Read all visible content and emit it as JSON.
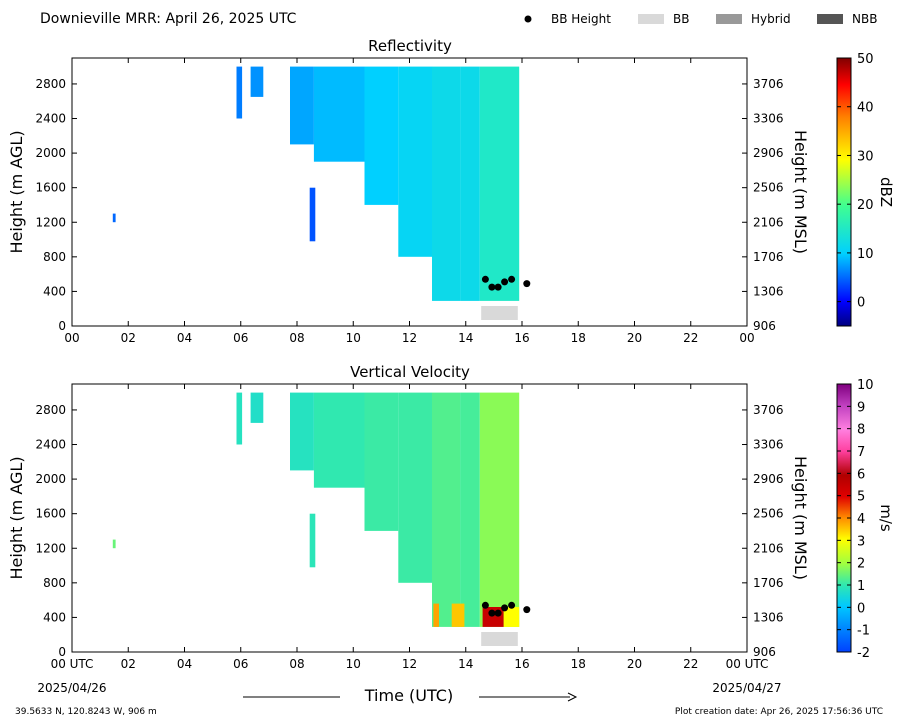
{
  "header": {
    "title": "Downieville MRR:  April 26, 2025 UTC",
    "legend": [
      {
        "label": "BB Height",
        "kind": "marker",
        "color": "#000000"
      },
      {
        "label": "BB",
        "kind": "patch",
        "color": "#d9d9d9"
      },
      {
        "label": "Hybrid",
        "kind": "patch",
        "color": "#999999"
      },
      {
        "label": "NBB",
        "kind": "patch",
        "color": "#555555"
      }
    ]
  },
  "footer": {
    "location": "39.5633 N, 120.8243 W, 906 m",
    "creation": "Plot creation date: Apr 26, 2025 17:56:36 UTC",
    "start_date": "2025/04/26",
    "end_date": "2025/04/27",
    "xaxis_title": "Time (UTC)"
  },
  "chart_data": [
    {
      "type": "heatmap",
      "title": "Reflectivity",
      "ylabel": "Height (m AGL)",
      "ylabel_right": "Height (m MSL)",
      "xlim": [
        0,
        24
      ],
      "ylim": [
        0,
        3100
      ],
      "x_ticks": [
        "00",
        "02",
        "04",
        "06",
        "08",
        "10",
        "12",
        "14",
        "16",
        "18",
        "20",
        "22",
        "00"
      ],
      "y_ticks": [
        "0",
        "400",
        "800",
        "1200",
        "1600",
        "2000",
        "2400",
        "2800"
      ],
      "y_ticks_right": [
        "906",
        "1306",
        "1706",
        "2106",
        "2506",
        "2906",
        "3306",
        "3706"
      ],
      "colorbar": {
        "label": "dBZ",
        "min": -5,
        "max": 50,
        "ticks": [
          "0",
          "10",
          "20",
          "30",
          "40",
          "50"
        ]
      },
      "bb_height": [
        {
          "time": 14.7,
          "height": 540
        },
        {
          "time": 14.93,
          "height": 450
        },
        {
          "time": 15.15,
          "height": 450
        },
        {
          "time": 15.38,
          "height": 510
        },
        {
          "time": 15.63,
          "height": 540
        },
        {
          "time": 16.17,
          "height": 490
        }
      ],
      "bb_bar": {
        "start": 14.55,
        "end": 15.85,
        "kind": "BB"
      },
      "echo_regions": [
        {
          "t0": 1.45,
          "t1": 1.55,
          "bottom": 1200,
          "top": 1300,
          "value": 5
        },
        {
          "t0": 5.85,
          "t1": 6.05,
          "bottom": 2400,
          "top": 3000,
          "value": 6
        },
        {
          "t0": 6.35,
          "t1": 6.8,
          "bottom": 2650,
          "top": 3000,
          "value": 7
        },
        {
          "t0": 7.75,
          "t1": 8.6,
          "bottom": 2100,
          "top": 3000,
          "value": 8
        },
        {
          "t0": 8.45,
          "t1": 8.65,
          "bottom": 980,
          "top": 1600,
          "value": 4
        },
        {
          "t0": 8.6,
          "t1": 10.4,
          "bottom": 1900,
          "top": 3000,
          "value": 9
        },
        {
          "t0": 10.4,
          "t1": 11.6,
          "bottom": 1400,
          "top": 3000,
          "value": 10
        },
        {
          "t0": 11.6,
          "t1": 12.8,
          "bottom": 800,
          "top": 3000,
          "value": 11
        },
        {
          "t0": 12.8,
          "t1": 13.8,
          "bottom": 290,
          "top": 3000,
          "value": 12
        },
        {
          "t0": 13.8,
          "t1": 14.5,
          "bottom": 290,
          "top": 3000,
          "value": 12
        },
        {
          "t0": 14.5,
          "t1": 15.9,
          "bottom": 290,
          "top": 3000,
          "value": 15
        }
      ]
    },
    {
      "type": "heatmap",
      "title": "Vertical Velocity",
      "ylabel": "Height (m AGL)",
      "ylabel_right": "Height (m MSL)",
      "xlim": [
        0,
        24
      ],
      "ylim": [
        0,
        3100
      ],
      "x_ticks": [
        "00 UTC",
        "02",
        "04",
        "06",
        "08",
        "10",
        "12",
        "14",
        "16",
        "18",
        "20",
        "22",
        "00 UTC"
      ],
      "y_ticks": [
        "0",
        "400",
        "800",
        "1200",
        "1600",
        "2000",
        "2400",
        "2800"
      ],
      "y_ticks_right": [
        "906",
        "1306",
        "1706",
        "2106",
        "2506",
        "2906",
        "3306",
        "3706"
      ],
      "colorbar": {
        "label": "m/s",
        "min": -2,
        "max": 10,
        "ticks": [
          "-2",
          "-1",
          "0",
          "1",
          "2",
          "3",
          "4",
          "5",
          "6",
          "7",
          "8",
          "9",
          "10"
        ]
      },
      "bb_height": [
        {
          "time": 14.7,
          "height": 540
        },
        {
          "time": 14.93,
          "height": 450
        },
        {
          "time": 15.15,
          "height": 450
        },
        {
          "time": 15.38,
          "height": 510
        },
        {
          "time": 15.63,
          "height": 540
        },
        {
          "time": 16.17,
          "height": 490
        }
      ],
      "bb_bar": {
        "start": 14.55,
        "end": 15.85,
        "kind": "BB"
      },
      "echo_regions": [
        {
          "t0": 1.45,
          "t1": 1.55,
          "bottom": 1200,
          "top": 1300,
          "value": 1.5
        },
        {
          "t0": 5.85,
          "t1": 6.05,
          "bottom": 2400,
          "top": 3000,
          "value": 0.8
        },
        {
          "t0": 6.35,
          "t1": 6.8,
          "bottom": 2650,
          "top": 3000,
          "value": 0.7
        },
        {
          "t0": 7.75,
          "t1": 8.6,
          "bottom": 2100,
          "top": 3000,
          "value": 0.8
        },
        {
          "t0": 8.45,
          "t1": 8.65,
          "bottom": 980,
          "top": 1600,
          "value": 0.9
        },
        {
          "t0": 8.6,
          "t1": 10.4,
          "bottom": 1900,
          "top": 3000,
          "value": 1.0
        },
        {
          "t0": 10.4,
          "t1": 11.6,
          "bottom": 1400,
          "top": 3000,
          "value": 1.1
        },
        {
          "t0": 11.6,
          "t1": 12.8,
          "bottom": 800,
          "top": 3000,
          "value": 1.1
        },
        {
          "t0": 12.8,
          "t1": 13.8,
          "bottom": 290,
          "top": 3000,
          "value": 1.3
        },
        {
          "t0": 13.8,
          "t1": 14.5,
          "bottom": 290,
          "top": 3000,
          "value": 1.2
        },
        {
          "t0": 14.5,
          "t1": 15.9,
          "bottom": 290,
          "top": 3000,
          "value": 1.8
        },
        {
          "t0": 12.85,
          "t1": 13.05,
          "bottom": 290,
          "top": 560,
          "value": 3.8
        },
        {
          "t0": 13.5,
          "t1": 13.95,
          "bottom": 290,
          "top": 560,
          "value": 3.5
        },
        {
          "t0": 14.6,
          "t1": 15.35,
          "bottom": 290,
          "top": 520,
          "value": 5.5
        },
        {
          "t0": 15.35,
          "t1": 15.9,
          "bottom": 290,
          "top": 520,
          "value": 3.0
        }
      ]
    }
  ]
}
